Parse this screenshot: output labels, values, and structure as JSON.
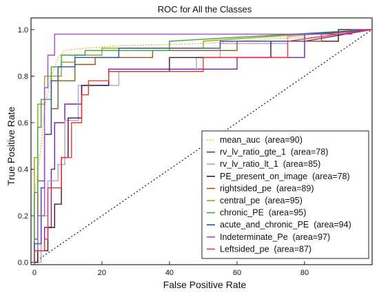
{
  "chart_data": {
    "type": "line",
    "title": "ROC for All the Classes",
    "xlabel": "False Positive Rate",
    "ylabel": "True Positive Rate",
    "xlim": [
      -1,
      100
    ],
    "ylim": [
      -0.01,
      1.05
    ],
    "xticks": [
      0,
      20,
      40,
      60,
      80
    ],
    "xtick_labels": [
      "0",
      "20",
      "40",
      "60",
      "80"
    ],
    "yticks": [
      0.0,
      0.2,
      0.4,
      0.6,
      0.8,
      1.0
    ],
    "ytick_labels": [
      "0.0",
      "0.2",
      "0.4",
      "0.6",
      "0.8",
      "1.0"
    ],
    "grid": false,
    "legend_position": "lower-right",
    "diagonal": {
      "x": [
        0,
        100
      ],
      "y": [
        0,
        1
      ]
    },
    "series": [
      {
        "name": "mean_auc  (area=90)",
        "color": "#f5b94a",
        "dash": "dotted",
        "x": [
          0,
          0,
          2,
          3,
          5,
          7,
          9,
          15,
          25,
          50,
          70,
          85,
          95,
          100
        ],
        "y": [
          0,
          0.28,
          0.5,
          0.66,
          0.8,
          0.88,
          0.91,
          0.92,
          0.93,
          0.94,
          0.96,
          0.97,
          0.99,
          1.0
        ]
      },
      {
        "name": "rv_lv_ratio_gte_1  (area=78)",
        "color": "#7b1fa2",
        "dash": "solid",
        "x": [
          0,
          1,
          1,
          3,
          3,
          5,
          5,
          6,
          6,
          9,
          9,
          14,
          14,
          22,
          22,
          60,
          60,
          80,
          80,
          100
        ],
        "y": [
          0,
          0,
          0.05,
          0.05,
          0.15,
          0.15,
          0.4,
          0.4,
          0.6,
          0.6,
          0.68,
          0.68,
          0.76,
          0.76,
          0.83,
          0.83,
          0.88,
          0.88,
          0.95,
          1.0
        ]
      },
      {
        "name": "rv_lv_ratio_lt_1  (area=85)",
        "color": "#b39ddb",
        "dash": "solid",
        "x": [
          0,
          2,
          2,
          4,
          4,
          7,
          7,
          9,
          9,
          13,
          13,
          25,
          25,
          48,
          48,
          55,
          55,
          75,
          75,
          100
        ],
        "y": [
          0,
          0,
          0.2,
          0.2,
          0.35,
          0.35,
          0.42,
          0.42,
          0.61,
          0.61,
          0.76,
          0.76,
          0.82,
          0.82,
          0.88,
          0.88,
          0.94,
          0.94,
          0.97,
          1.0
        ]
      },
      {
        "name": "PE_present_on_image  (area=78)",
        "color": "#4a1020",
        "dash": "solid",
        "x": [
          0,
          1,
          1,
          4,
          4,
          6,
          6,
          8,
          8,
          10,
          10,
          14,
          14,
          22,
          22,
          40,
          40,
          70,
          70,
          90,
          90,
          100
        ],
        "y": [
          0,
          0,
          0.05,
          0.05,
          0.15,
          0.15,
          0.25,
          0.25,
          0.45,
          0.45,
          0.62,
          0.62,
          0.76,
          0.76,
          0.82,
          0.82,
          0.88,
          0.88,
          0.95,
          0.95,
          1.0,
          1.0
        ]
      },
      {
        "name": "rightsided_pe  (area=89)",
        "color": "#8b5a1a",
        "dash": "solid",
        "x": [
          0,
          0,
          1,
          1,
          3,
          3,
          5,
          5,
          7,
          7,
          12,
          12,
          18,
          18,
          35,
          35,
          60,
          60,
          85,
          85,
          100
        ],
        "y": [
          0,
          0.1,
          0.1,
          0.35,
          0.35,
          0.55,
          0.55,
          0.66,
          0.66,
          0.78,
          0.78,
          0.85,
          0.85,
          0.88,
          0.88,
          0.91,
          0.91,
          0.95,
          0.95,
          0.98,
          1.0
        ]
      },
      {
        "name": "central_pe  (area=95)",
        "color": "#9aa60a",
        "dash": "solid",
        "x": [
          0,
          0,
          1,
          1,
          3,
          3,
          8,
          8,
          12,
          12,
          20,
          20,
          50,
          50,
          100
        ],
        "y": [
          0,
          0.45,
          0.45,
          0.68,
          0.68,
          0.8,
          0.8,
          0.86,
          0.86,
          0.89,
          0.89,
          0.92,
          0.92,
          0.95,
          1.0
        ]
      },
      {
        "name": "chronic_PE  (area=95)",
        "color": "#3aa640",
        "dash": "solid",
        "x": [
          0,
          0,
          1,
          1,
          2,
          2,
          5,
          5,
          8,
          8,
          15,
          15,
          40,
          40,
          100
        ],
        "y": [
          0,
          0.3,
          0.3,
          0.58,
          0.58,
          0.7,
          0.7,
          0.84,
          0.84,
          0.89,
          0.89,
          0.91,
          0.91,
          0.95,
          1.0
        ]
      },
      {
        "name": "acute_and_chronic_PE  (area=94)",
        "color": "#2b4fa8",
        "dash": "solid",
        "x": [
          0,
          0,
          2,
          2,
          3,
          3,
          5,
          5,
          7,
          7,
          12,
          12,
          25,
          25,
          55,
          55,
          80,
          80,
          100
        ],
        "y": [
          0,
          0.08,
          0.08,
          0.32,
          0.32,
          0.55,
          0.55,
          0.78,
          0.78,
          0.84,
          0.84,
          0.88,
          0.88,
          0.92,
          0.92,
          0.95,
          0.95,
          0.98,
          1.0
        ]
      },
      {
        "name": "Indeterminate_Pe  (area=97)",
        "color": "#a24ad6",
        "dash": "solid",
        "x": [
          0,
          0,
          1,
          1,
          3,
          3,
          4,
          4,
          6,
          6,
          94,
          94,
          100
        ],
        "y": [
          0,
          0.05,
          0.05,
          0.2,
          0.2,
          0.75,
          0.75,
          0.89,
          0.89,
          0.98,
          0.98,
          1.0,
          1.0
        ]
      },
      {
        "name": "Leftsided_pe  (area=87)",
        "color": "#e53935",
        "dash": "solid",
        "x": [
          0,
          0,
          3,
          3,
          4,
          4,
          8,
          8,
          11,
          11,
          14,
          14,
          16,
          16,
          22,
          22,
          50,
          50,
          75,
          75,
          100
        ],
        "y": [
          0,
          0.05,
          0.05,
          0.1,
          0.1,
          0.32,
          0.32,
          0.45,
          0.45,
          0.6,
          0.6,
          0.72,
          0.72,
          0.78,
          0.78,
          0.82,
          0.82,
          0.88,
          0.88,
          0.95,
          1.0
        ]
      }
    ]
  }
}
